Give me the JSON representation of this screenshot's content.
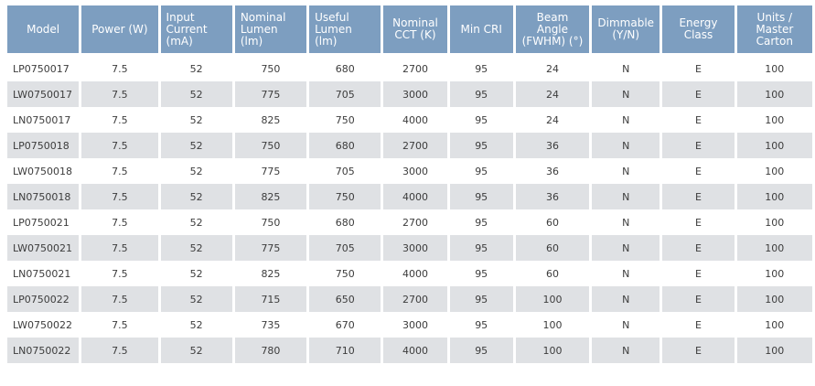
{
  "table": {
    "headers": [
      "Model",
      "Power (W)",
      "Input Current (mA)",
      "Nominal Lumen (lm)",
      "Useful Lumen (lm)",
      "Nominal CCT (K)",
      "Min CRI",
      "Beam Angle (FWHM) (°)",
      "Dimmable (Y/N)",
      "Energy Class",
      "Units / Master Carton"
    ],
    "rows": [
      [
        "LP0750017",
        "7.5",
        "52",
        "750",
        "680",
        "2700",
        "95",
        "24",
        "N",
        "E",
        "100"
      ],
      [
        "LW0750017",
        "7.5",
        "52",
        "775",
        "705",
        "3000",
        "95",
        "24",
        "N",
        "E",
        "100"
      ],
      [
        "LN0750017",
        "7.5",
        "52",
        "825",
        "750",
        "4000",
        "95",
        "24",
        "N",
        "E",
        "100"
      ],
      [
        "LP0750018",
        "7.5",
        "52",
        "750",
        "680",
        "2700",
        "95",
        "36",
        "N",
        "E",
        "100"
      ],
      [
        "LW0750018",
        "7.5",
        "52",
        "775",
        "705",
        "3000",
        "95",
        "36",
        "N",
        "E",
        "100"
      ],
      [
        "LN0750018",
        "7.5",
        "52",
        "825",
        "750",
        "4000",
        "95",
        "36",
        "N",
        "E",
        "100"
      ],
      [
        "LP0750021",
        "7.5",
        "52",
        "750",
        "680",
        "2700",
        "95",
        "60",
        "N",
        "E",
        "100"
      ],
      [
        "LW0750021",
        "7.5",
        "52",
        "775",
        "705",
        "3000",
        "95",
        "60",
        "N",
        "E",
        "100"
      ],
      [
        "LN0750021",
        "7.5",
        "52",
        "825",
        "750",
        "4000",
        "95",
        "60",
        "N",
        "E",
        "100"
      ],
      [
        "LP0750022",
        "7.5",
        "52",
        "715",
        "650",
        "2700",
        "95",
        "100",
        "N",
        "E",
        "100"
      ],
      [
        "LW0750022",
        "7.5",
        "52",
        "735",
        "670",
        "3000",
        "95",
        "100",
        "N",
        "E",
        "100"
      ],
      [
        "LN0750022",
        "7.5",
        "52",
        "780",
        "710",
        "4000",
        "95",
        "100",
        "N",
        "E",
        "100"
      ]
    ]
  },
  "colors": {
    "header_bg": "#7d9ec0",
    "header_text": "#ffffff",
    "stripe_bg": "#dfe1e4",
    "body_text": "#3c3c3c"
  }
}
